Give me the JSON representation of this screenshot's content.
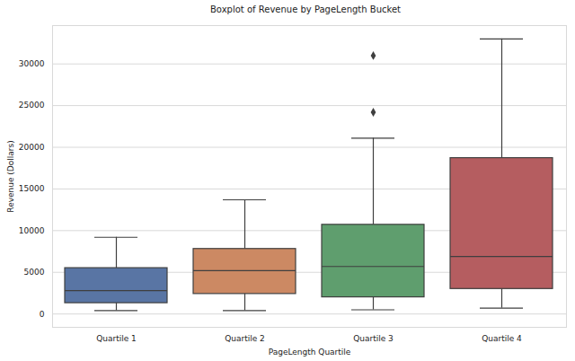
{
  "chart_data": {
    "type": "box",
    "title": "Boxplot of Revenue by PageLength Bucket",
    "x_label": "PageLength Quartile",
    "y_label": "Revenue (Dollars)",
    "categories": [
      "Quartile 1",
      "Quartile 2",
      "Quartile 3",
      "Quartile 4"
    ],
    "whisker_low": [
      400,
      400,
      500,
      700
    ],
    "q1": [
      1300,
      2400,
      2000,
      3000
    ],
    "median": [
      2800,
      5200,
      5700,
      6900
    ],
    "q3": [
      5500,
      7800,
      10700,
      18700
    ],
    "whisker_high": [
      9200,
      13700,
      21100,
      33000
    ],
    "outliers": [
      [],
      [],
      [
        24200,
        31000
      ],
      []
    ],
    "colors": [
      "#5975a4",
      "#cc8963",
      "#5f9e6e",
      "#b55d60"
    ],
    "ylim": [
      -1600,
      34600
    ],
    "yticks": [
      0,
      5000,
      10000,
      15000,
      20000,
      25000,
      30000
    ],
    "grid": true
  }
}
